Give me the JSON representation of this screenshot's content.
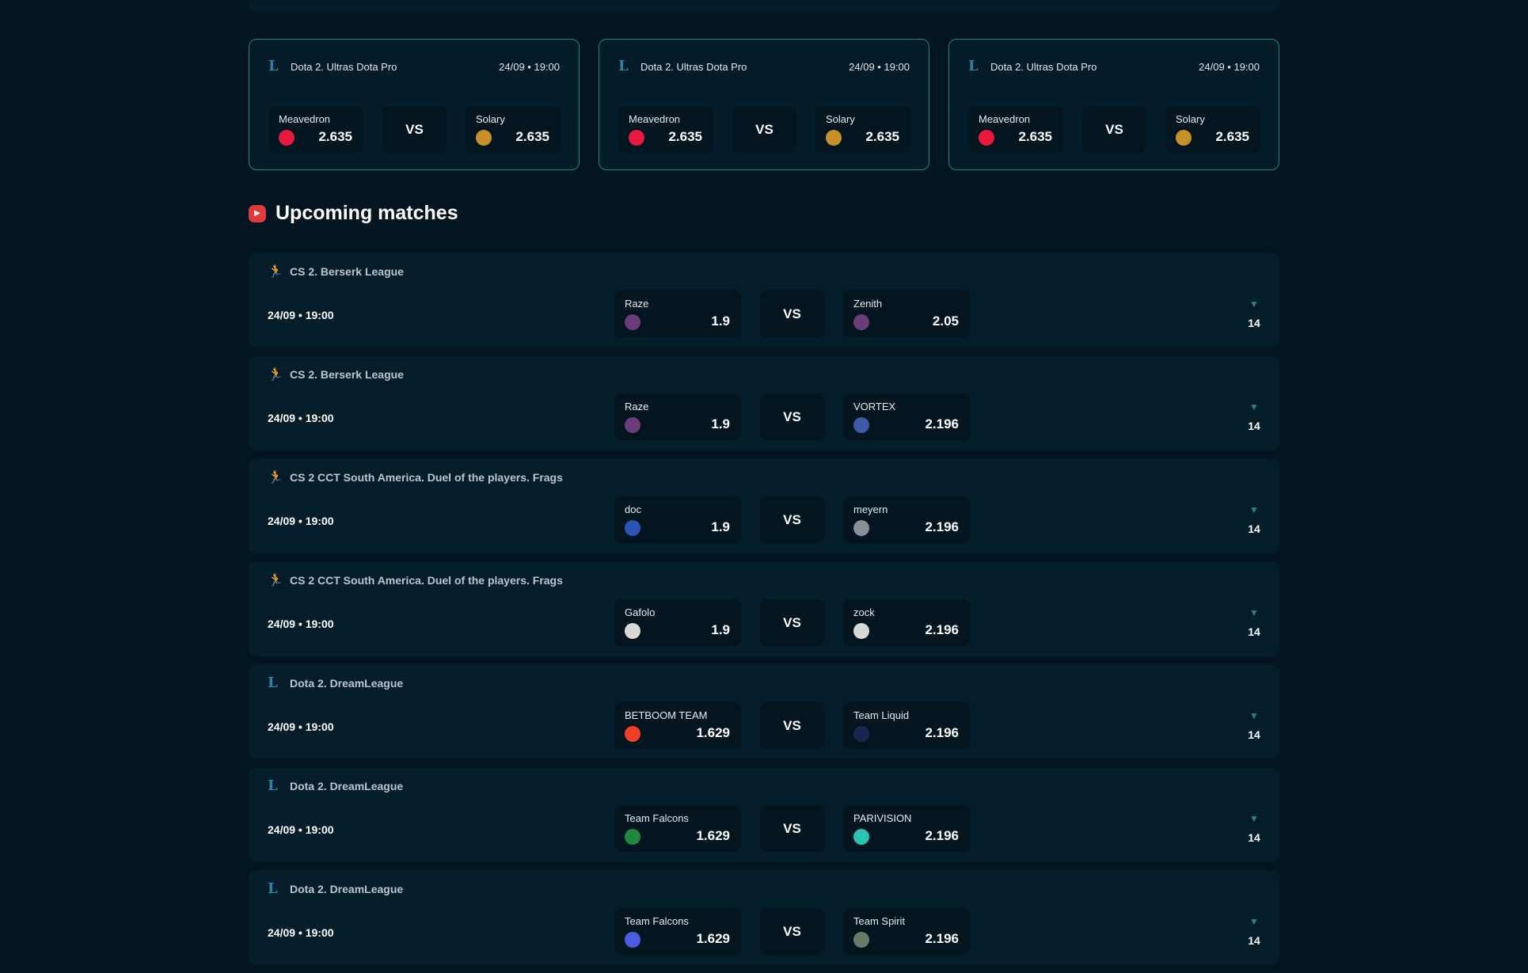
{
  "featured": [
    {
      "league": "Dota 2. Ultras Dota Pro",
      "datetime": "24/09 • 19:00",
      "team1": {
        "name": "Meavedron",
        "odds": "2.635",
        "logo_color": "#e8193f"
      },
      "vs": "VS",
      "team2": {
        "name": "Solary",
        "odds": "2.635",
        "logo_color": "#c8902a"
      }
    },
    {
      "league": "Dota 2. Ultras Dota Pro",
      "datetime": "24/09 • 19:00",
      "team1": {
        "name": "Meavedron",
        "odds": "2.635",
        "logo_color": "#e8193f"
      },
      "vs": "VS",
      "team2": {
        "name": "Solary",
        "odds": "2.635",
        "logo_color": "#c8902a"
      }
    },
    {
      "league": "Dota 2. Ultras Dota Pro",
      "datetime": "24/09 • 19:00",
      "team1": {
        "name": "Meavedron",
        "odds": "2.635",
        "logo_color": "#e8193f"
      },
      "vs": "VS",
      "team2": {
        "name": "Solary",
        "odds": "2.635",
        "logo_color": "#c8902a"
      }
    }
  ],
  "upcoming": {
    "title": "Upcoming matches",
    "matches": [
      {
        "game": "cs2",
        "league": "CS 2. Berserk League",
        "datetime": "24/09 • 19:00",
        "team1": {
          "name": "Raze",
          "odds": "1.9",
          "logo_color": "#6b3c7a"
        },
        "vs": "VS",
        "team2": {
          "name": "Zenith",
          "odds": "2.05",
          "logo_color": "#6b3c7a"
        },
        "count": "14"
      },
      {
        "game": "cs2",
        "league": "CS 2. Berserk League",
        "datetime": "24/09 • 19:00",
        "team1": {
          "name": "Raze",
          "odds": "1.9",
          "logo_color": "#6b3c7a"
        },
        "vs": "VS",
        "team2": {
          "name": "VORTEX",
          "odds": "2.196",
          "logo_color": "#3b5aa8"
        },
        "count": "14"
      },
      {
        "game": "cs2",
        "league": "CS 2 CCT South America. Duel of the players. Frags",
        "datetime": "24/09 • 19:00",
        "team1": {
          "name": "doc",
          "odds": "1.9",
          "logo_color": "#2d55b5"
        },
        "vs": "VS",
        "team2": {
          "name": "meyern",
          "odds": "2.196",
          "logo_color": "#8a8f96"
        },
        "count": "14"
      },
      {
        "game": "cs2",
        "league": "CS 2 CCT South America. Duel of the players. Frags",
        "datetime": "24/09 • 19:00",
        "team1": {
          "name": "Gafolo",
          "odds": "1.9",
          "logo_color": "#d8d8d8"
        },
        "vs": "VS",
        "team2": {
          "name": "zock",
          "odds": "2.196",
          "logo_color": "#d8d8d8"
        },
        "count": "14"
      },
      {
        "game": "dota2",
        "league": "Dota 2. DreamLeague",
        "datetime": "24/09 • 19:00",
        "team1": {
          "name": "BETBOOM TEAM",
          "odds": "1.629",
          "logo_color": "#f0402a"
        },
        "vs": "VS",
        "team2": {
          "name": "Team Liquid",
          "odds": "2.196",
          "logo_color": "#1b2550"
        },
        "count": "14"
      },
      {
        "game": "dota2",
        "league": "Dota 2. DreamLeague",
        "datetime": "24/09 • 19:00",
        "team1": {
          "name": "Team Falcons",
          "odds": "1.629",
          "logo_color": "#1f8a3c"
        },
        "vs": "VS",
        "team2": {
          "name": "PARIVISION",
          "odds": "2.196",
          "logo_color": "#2bc2b0"
        },
        "count": "14"
      },
      {
        "game": "dota2",
        "league": "Dota 2. DreamLeague",
        "datetime": "24/09 • 19:00",
        "team1": {
          "name": "Team Falcons",
          "odds": "1.629",
          "logo_color": "#4a5ce0"
        },
        "vs": "VS",
        "team2": {
          "name": "Team Spirit",
          "odds": "2.196",
          "logo_color": "#6d7a6a"
        },
        "count": "14"
      }
    ]
  }
}
